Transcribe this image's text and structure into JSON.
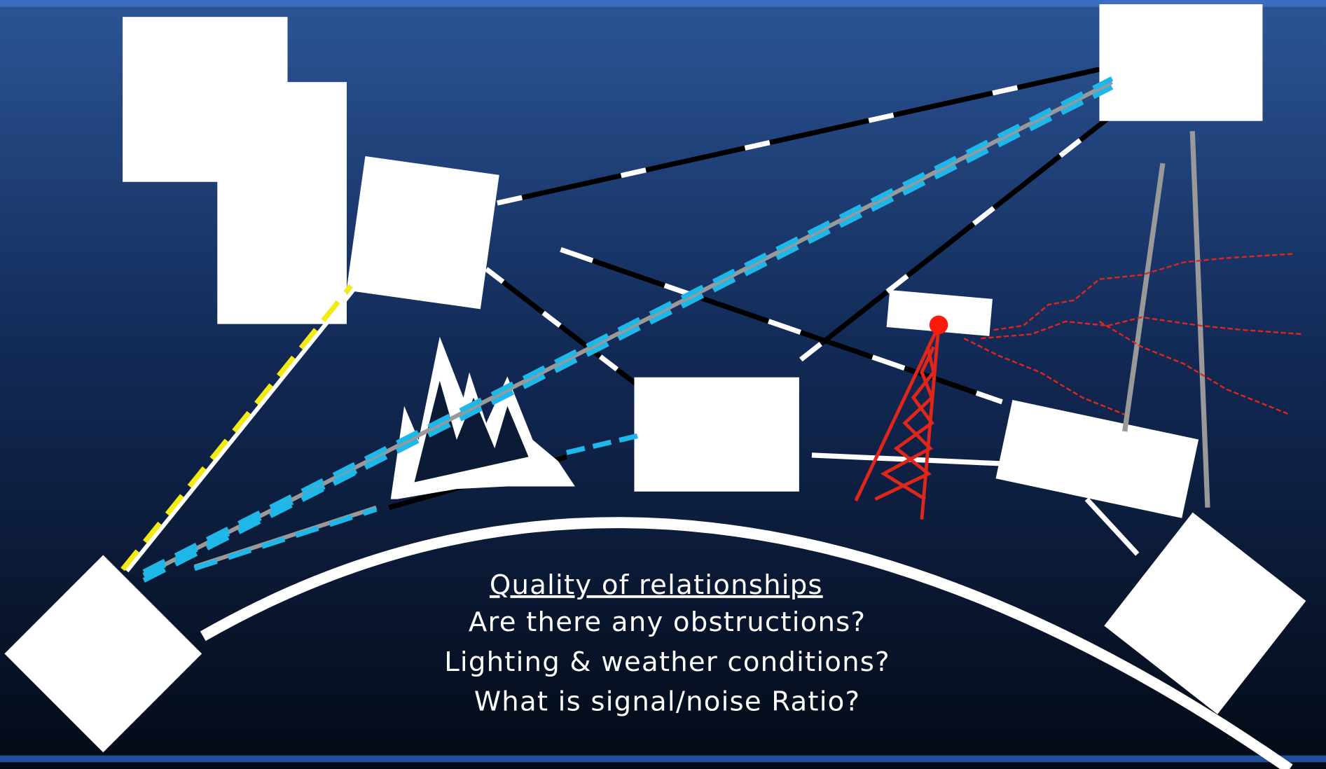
{
  "heading": "Quality of relationships",
  "questions": [
    "Are there any obstructions?",
    "Lighting & weather conditions?",
    "What is signal/noise Ratio?"
  ]
}
